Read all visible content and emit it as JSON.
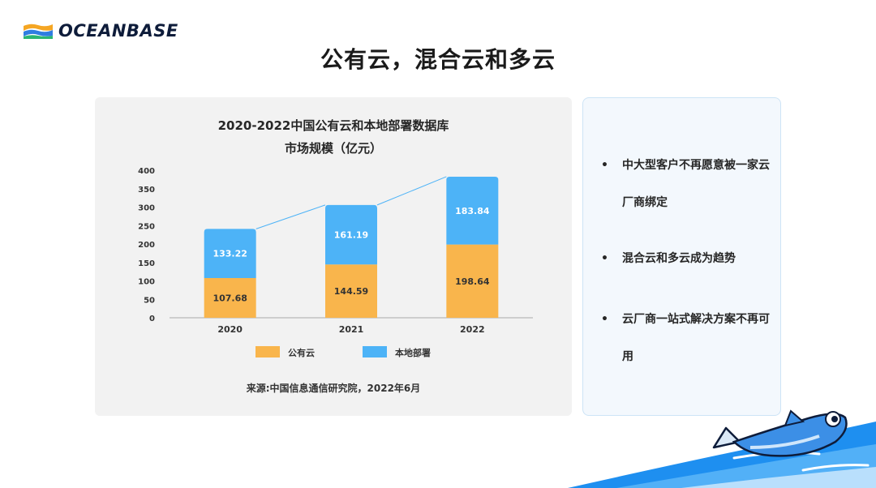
{
  "brand": {
    "logo_text": "OCEANBASE",
    "logo_colors": {
      "blue": "#2f7de1",
      "orange": "#f5a623",
      "green": "#2bb673",
      "ink": "#0e1c3a"
    }
  },
  "page": {
    "title": "公有云，混合云和多云"
  },
  "chart_panel": {
    "title_line1": "2020-2022中国公有云和本地部署数据库",
    "title_line2": "市场规模（亿元）",
    "source": "来源:中国信息通信研究院，2022年6月"
  },
  "chart_data": {
    "type": "bar",
    "stacked": true,
    "categories": [
      "2020",
      "2021",
      "2022"
    ],
    "series": [
      {
        "name": "公有云",
        "values": [
          107.68,
          144.59,
          198.64
        ],
        "color": "#f9b54c"
      },
      {
        "name": "本地部署",
        "values": [
          133.22,
          161.19,
          183.84
        ],
        "color": "#4db3f7"
      }
    ],
    "y_ticks": [
      "0",
      "50",
      "100",
      "150",
      "200",
      "250",
      "300",
      "350",
      "400"
    ],
    "ylim": [
      0,
      400
    ],
    "total_trend_line": true,
    "trend_color": "#4db3f7",
    "legend_position": "bottom",
    "grid": false
  },
  "bullets": {
    "items": [
      {
        "dot": "•",
        "text": "中大型客户不再愿意被一家云厂商绑定"
      },
      {
        "dot": "•",
        "text": "混合云和多云成为趋势"
      },
      {
        "dot": "•",
        "text": "云厂商一站式解决方案不再可用"
      }
    ]
  },
  "decor": {
    "wave_color": "#1e8ff0",
    "mascot": "fish-mascot"
  }
}
